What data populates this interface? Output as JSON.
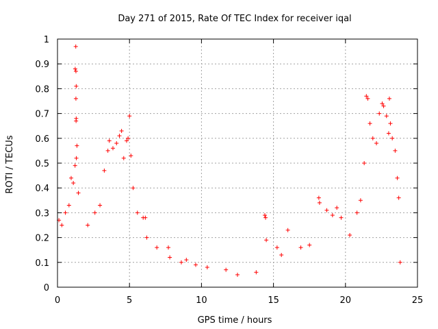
{
  "chart_data": {
    "type": "scatter",
    "title": "Day 271 of 2015, Rate Of TEC Index for receiver iqal",
    "xlabel": "GPS time / hours",
    "ylabel": "ROTI / TECUs",
    "xlim": [
      0,
      25
    ],
    "ylim": [
      0,
      1
    ],
    "x_ticks": [
      "0",
      "5",
      "10",
      "15",
      "20",
      "25"
    ],
    "y_ticks": [
      "0",
      "0.1",
      "0.2",
      "0.3",
      "0.4",
      "0.5",
      "0.6",
      "0.7",
      "0.8",
      "0.9",
      "1"
    ],
    "grid": true,
    "marker": "+",
    "color": "#ff0000",
    "series": [
      {
        "name": "ROTI",
        "points": [
          [
            1.27,
            0.97
          ],
          [
            1.23,
            0.88
          ],
          [
            1.28,
            0.87
          ],
          [
            1.3,
            0.81
          ],
          [
            1.28,
            0.76
          ],
          [
            1.3,
            0.68
          ],
          [
            1.29,
            0.67
          ],
          [
            1.35,
            0.57
          ],
          [
            1.31,
            0.52
          ],
          [
            1.22,
            0.49
          ],
          [
            0.95,
            0.44
          ],
          [
            1.1,
            0.42
          ],
          [
            1.45,
            0.38
          ],
          [
            0.8,
            0.33
          ],
          [
            0.1,
            0.27
          ],
          [
            0.3,
            0.25
          ],
          [
            0.55,
            0.3
          ],
          [
            2.1,
            0.25
          ],
          [
            2.6,
            0.3
          ],
          [
            2.95,
            0.33
          ],
          [
            3.25,
            0.47
          ],
          [
            3.5,
            0.55
          ],
          [
            3.6,
            0.59
          ],
          [
            3.85,
            0.56
          ],
          [
            4.1,
            0.58
          ],
          [
            4.3,
            0.61
          ],
          [
            4.45,
            0.63
          ],
          [
            4.6,
            0.52
          ],
          [
            4.8,
            0.59
          ],
          [
            4.9,
            0.6
          ],
          [
            5.0,
            0.69
          ],
          [
            5.1,
            0.53
          ],
          [
            5.25,
            0.4
          ],
          [
            5.55,
            0.3
          ],
          [
            5.95,
            0.28
          ],
          [
            6.1,
            0.28
          ],
          [
            6.2,
            0.2
          ],
          [
            6.9,
            0.16
          ],
          [
            7.7,
            0.16
          ],
          [
            7.8,
            0.12
          ],
          [
            8.6,
            0.1
          ],
          [
            8.95,
            0.11
          ],
          [
            9.6,
            0.09
          ],
          [
            10.4,
            0.08
          ],
          [
            11.7,
            0.07
          ],
          [
            12.5,
            0.05
          ],
          [
            13.8,
            0.06
          ],
          [
            14.4,
            0.29
          ],
          [
            14.45,
            0.28
          ],
          [
            14.5,
            0.19
          ],
          [
            15.25,
            0.16
          ],
          [
            15.55,
            0.13
          ],
          [
            16.0,
            0.23
          ],
          [
            16.9,
            0.16
          ],
          [
            17.5,
            0.17
          ],
          [
            18.15,
            0.36
          ],
          [
            18.2,
            0.34
          ],
          [
            18.7,
            0.31
          ],
          [
            19.1,
            0.29
          ],
          [
            19.4,
            0.32
          ],
          [
            19.7,
            0.28
          ],
          [
            20.3,
            0.21
          ],
          [
            20.8,
            0.3
          ],
          [
            21.05,
            0.35
          ],
          [
            21.3,
            0.5
          ],
          [
            21.45,
            0.77
          ],
          [
            21.55,
            0.76
          ],
          [
            21.7,
            0.66
          ],
          [
            21.9,
            0.6
          ],
          [
            22.15,
            0.58
          ],
          [
            22.35,
            0.7
          ],
          [
            22.55,
            0.74
          ],
          [
            22.65,
            0.73
          ],
          [
            22.85,
            0.69
          ],
          [
            23.0,
            0.62
          ],
          [
            23.05,
            0.76
          ],
          [
            23.12,
            0.66
          ],
          [
            23.25,
            0.6
          ],
          [
            23.45,
            0.55
          ],
          [
            23.6,
            0.44
          ],
          [
            23.7,
            0.36
          ],
          [
            23.8,
            0.1
          ]
        ]
      }
    ]
  }
}
